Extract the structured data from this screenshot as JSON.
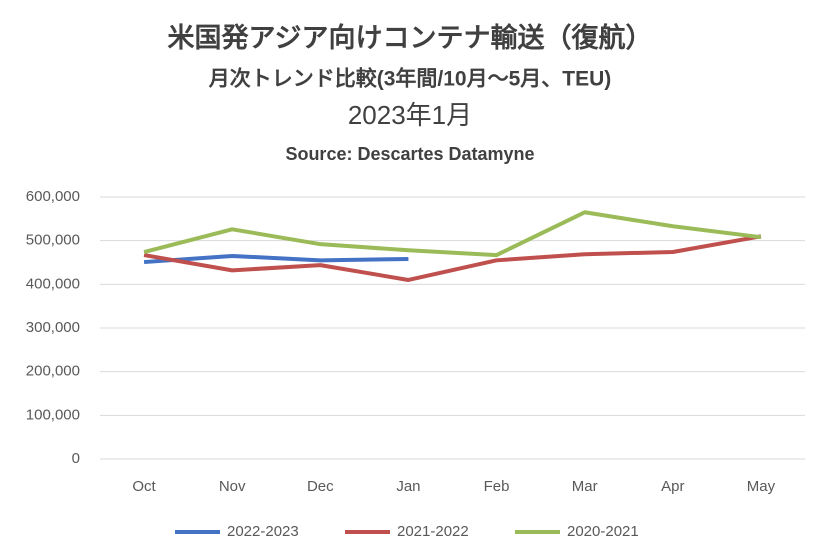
{
  "chart_data": {
    "type": "line",
    "title": "米国発アジア向けコンテナ輸送（復航）",
    "subtitle": "月次トレンド比較(3年間/10月～5月、TEU)",
    "period": "2023年1月",
    "source": "Source: Descartes Datamyne",
    "categories": [
      "Oct",
      "Nov",
      "Dec",
      "Jan",
      "Feb",
      "Mar",
      "Apr",
      "May"
    ],
    "series": [
      {
        "name": "2022-2023",
        "color": "#4472c4",
        "values": [
          451000,
          465000,
          455000,
          458000,
          null,
          null,
          null,
          null
        ]
      },
      {
        "name": "2021-2022",
        "color": "#c0504d",
        "values": [
          467000,
          432000,
          444000,
          410000,
          455000,
          469000,
          474000,
          510000
        ]
      },
      {
        "name": "2020-2021",
        "color": "#9bbb59",
        "values": [
          474000,
          526000,
          492000,
          478000,
          467000,
          565000,
          533000,
          508000
        ]
      }
    ],
    "ylim": [
      0,
      600000
    ],
    "yticks": [
      0,
      {
        "value": 100000,
        "label": "100,000"
      },
      {
        "value": 200000,
        "label": "200,000"
      },
      {
        "value": 300000,
        "label": "300,000"
      },
      {
        "value": 400000,
        "label": "400,000"
      },
      {
        "value": 500000,
        "label": "500,000"
      },
      {
        "value": 600000,
        "label": "600,000"
      }
    ],
    "grid": true,
    "legend": "bottom"
  }
}
